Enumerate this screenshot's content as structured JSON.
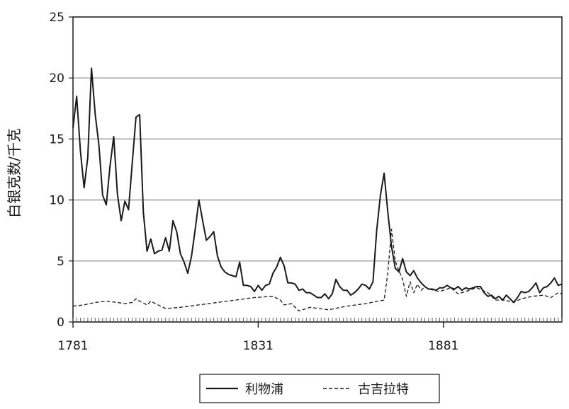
{
  "chart_data": {
    "type": "line",
    "title": "",
    "xlabel": "",
    "ylabel": "白银克数/千克",
    "xlim": [
      1781,
      1913
    ],
    "ylim": [
      0,
      25
    ],
    "x_ticks": [
      "1781",
      "1831",
      "1881"
    ],
    "y_ticks": [
      "0",
      "5",
      "10",
      "15",
      "20",
      "25"
    ],
    "grid": "horizontal",
    "legend": "bottom-center",
    "series": [
      {
        "name": "利物浦",
        "style": "solid",
        "color": "#1a1a1a",
        "x": [
          1781,
          1782,
          1783,
          1784,
          1785,
          1786,
          1787,
          1788,
          1789,
          1790,
          1791,
          1792,
          1793,
          1794,
          1795,
          1796,
          1797,
          1798,
          1799,
          1800,
          1801,
          1802,
          1803,
          1804,
          1805,
          1806,
          1807,
          1808,
          1809,
          1810,
          1811,
          1812,
          1813,
          1814,
          1815,
          1816,
          1817,
          1818,
          1819,
          1820,
          1821,
          1822,
          1823,
          1824,
          1825,
          1826,
          1827,
          1828,
          1829,
          1830,
          1831,
          1832,
          1833,
          1834,
          1835,
          1836,
          1837,
          1838,
          1839,
          1840,
          1841,
          1842,
          1843,
          1844,
          1845,
          1846,
          1847,
          1848,
          1849,
          1850,
          1851,
          1852,
          1853,
          1854,
          1855,
          1856,
          1857,
          1858,
          1859,
          1860,
          1861,
          1862,
          1863,
          1864,
          1865,
          1866,
          1867,
          1868,
          1869,
          1870,
          1871,
          1872,
          1873,
          1874,
          1875,
          1876,
          1877,
          1878,
          1879,
          1880,
          1881,
          1882,
          1883,
          1884,
          1885,
          1886,
          1887,
          1888,
          1889,
          1890,
          1891,
          1892,
          1893,
          1894,
          1895,
          1896,
          1897,
          1898,
          1899,
          1900,
          1901,
          1902,
          1903,
          1904,
          1905,
          1906,
          1907,
          1908,
          1909,
          1910,
          1911,
          1912,
          1913
        ],
        "values": [
          15.9,
          18.5,
          14.0,
          11.0,
          13.5,
          20.8,
          17.0,
          14.5,
          10.4,
          9.6,
          12.8,
          15.2,
          10.5,
          8.3,
          9.9,
          9.2,
          13.0,
          16.8,
          17.0,
          9.0,
          5.8,
          6.8,
          5.6,
          5.8,
          5.9,
          6.9,
          5.8,
          8.3,
          7.4,
          5.6,
          4.9,
          4.0,
          5.4,
          7.6,
          10.0,
          8.3,
          6.7,
          7.0,
          7.4,
          5.4,
          4.5,
          4.1,
          3.9,
          3.8,
          3.7,
          4.9,
          3.0,
          3.0,
          2.9,
          2.5,
          3.0,
          2.6,
          3.0,
          3.1,
          4.0,
          4.5,
          5.3,
          4.6,
          3.2,
          3.2,
          3.1,
          2.6,
          2.7,
          2.4,
          2.4,
          2.2,
          2.0,
          2.0,
          2.3,
          1.9,
          2.3,
          3.5,
          2.9,
          2.6,
          2.6,
          2.2,
          2.4,
          2.7,
          3.1,
          3.0,
          2.7,
          3.3,
          7.5,
          10.4,
          12.2,
          9.0,
          6.2,
          4.4,
          4.1,
          5.2,
          4.1,
          3.8,
          4.2,
          3.6,
          3.2,
          2.9,
          2.7,
          2.7,
          2.6,
          2.8,
          2.8,
          3.0,
          2.8,
          2.7,
          2.9,
          2.6,
          2.8,
          2.7,
          2.8,
          2.9,
          2.9,
          2.4,
          2.1,
          2.2,
          1.9,
          2.1,
          1.8,
          2.2,
          1.9,
          1.6,
          2.0,
          2.5,
          2.4,
          2.5,
          2.8,
          3.2,
          2.4,
          2.8,
          2.9,
          3.2,
          3.6,
          3.0,
          3.1
        ],
        "label_x": 1781
      },
      {
        "name": "古吉拉特",
        "style": "dashed",
        "color": "#1a1a1a",
        "x": [
          1781,
          1784,
          1787,
          1790,
          1793,
          1795,
          1797,
          1798,
          1799,
          1801,
          1802,
          1804,
          1806,
          1810,
          1815,
          1820,
          1825,
          1830,
          1835,
          1837,
          1838,
          1840,
          1841,
          1842,
          1843,
          1845,
          1850,
          1855,
          1860,
          1865,
          1866,
          1867,
          1868,
          1869,
          1870,
          1871,
          1872,
          1873,
          1874,
          1875,
          1876,
          1877,
          1880,
          1883,
          1885,
          1888,
          1890,
          1893,
          1895,
          1897,
          1899,
          1900,
          1902,
          1905,
          1908,
          1910,
          1912,
          1913
        ],
        "values": [
          1.3,
          1.4,
          1.6,
          1.7,
          1.6,
          1.5,
          1.6,
          1.9,
          1.7,
          1.4,
          1.7,
          1.4,
          1.1,
          1.2,
          1.4,
          1.6,
          1.8,
          2.0,
          2.1,
          1.8,
          1.4,
          1.5,
          1.2,
          0.9,
          1.0,
          1.2,
          1.0,
          1.3,
          1.5,
          1.8,
          4.0,
          7.6,
          5.0,
          4.2,
          3.5,
          2.1,
          3.3,
          2.4,
          3.1,
          2.6,
          2.9,
          2.7,
          2.5,
          2.8,
          2.3,
          2.6,
          2.8,
          2.4,
          1.8,
          1.8,
          1.7,
          1.6,
          1.9,
          2.1,
          2.2,
          2.0,
          2.4,
          2.3
        ]
      }
    ]
  }
}
